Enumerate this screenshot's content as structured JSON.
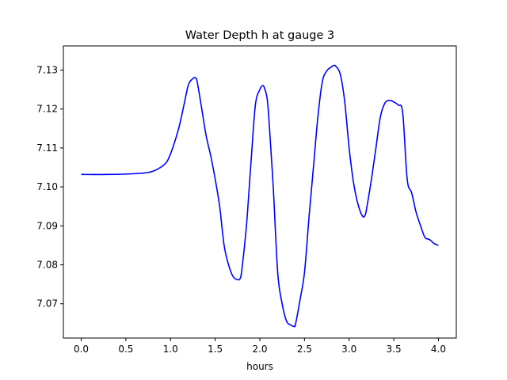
{
  "chart_data": {
    "type": "line",
    "title": "Water Depth h at gauge 3",
    "xlabel": "hours",
    "ylabel": "",
    "xlim": [
      -0.2,
      4.2
    ],
    "ylim": [
      7.0612,
      7.1362
    ],
    "xticks": [
      0.0,
      0.5,
      1.0,
      1.5,
      2.0,
      2.5,
      3.0,
      3.5,
      4.0
    ],
    "xtick_labels": [
      "0.0",
      "0.5",
      "1.0",
      "1.5",
      "2.0",
      "2.5",
      "3.0",
      "3.5",
      "4.0"
    ],
    "yticks": [
      7.07,
      7.08,
      7.09,
      7.1,
      7.11,
      7.12,
      7.13
    ],
    "ytick_labels": [
      "7.07",
      "7.08",
      "7.09",
      "7.10",
      "7.11",
      "7.12",
      "7.13"
    ],
    "grid": false,
    "line_color": "#0000ff",
    "series": [
      {
        "x": [
          0.0,
          0.3,
          0.6,
          0.75,
          0.85,
          0.95,
          1.0,
          1.05,
          1.1,
          1.15,
          1.2,
          1.25,
          1.28,
          1.3,
          1.35,
          1.4,
          1.45,
          1.5,
          1.55,
          1.6,
          1.65,
          1.7,
          1.75,
          1.78,
          1.8,
          1.85,
          1.9,
          1.95,
          2.0,
          2.03,
          2.05,
          2.08,
          2.1,
          2.15,
          2.2,
          2.25,
          2.3,
          2.35,
          2.38,
          2.4,
          2.45,
          2.5,
          2.55,
          2.6,
          2.65,
          2.7,
          2.75,
          2.8,
          2.83,
          2.85,
          2.9,
          2.95,
          3.0,
          3.05,
          3.1,
          3.15,
          3.18,
          3.2,
          3.25,
          3.3,
          3.35,
          3.4,
          3.45,
          3.5,
          3.55,
          3.6,
          3.65,
          3.7,
          3.75,
          3.8,
          3.85,
          3.9,
          3.95,
          4.0
        ],
        "y": [
          7.1032,
          7.1032,
          7.1034,
          7.1037,
          7.1045,
          7.1062,
          7.1085,
          7.1118,
          7.1158,
          7.121,
          7.1262,
          7.1278,
          7.128,
          7.1268,
          7.12,
          7.113,
          7.108,
          7.102,
          7.095,
          7.085,
          7.08,
          7.077,
          7.0762,
          7.0765,
          7.079,
          7.09,
          7.106,
          7.121,
          7.125,
          7.126,
          7.1255,
          7.123,
          7.118,
          7.1,
          7.078,
          7.07,
          7.0655,
          7.0645,
          7.0642,
          7.0648,
          7.071,
          7.078,
          7.092,
          7.105,
          7.118,
          7.127,
          7.1298,
          7.1308,
          7.1312,
          7.131,
          7.129,
          7.122,
          7.11,
          7.101,
          7.0955,
          7.0925,
          7.0928,
          7.095,
          7.102,
          7.11,
          7.118,
          7.1215,
          7.1222,
          7.1218,
          7.121,
          7.119,
          7.102,
          7.0985,
          7.0935,
          7.09,
          7.087,
          7.0865,
          7.0855,
          7.085
        ]
      }
    ]
  }
}
